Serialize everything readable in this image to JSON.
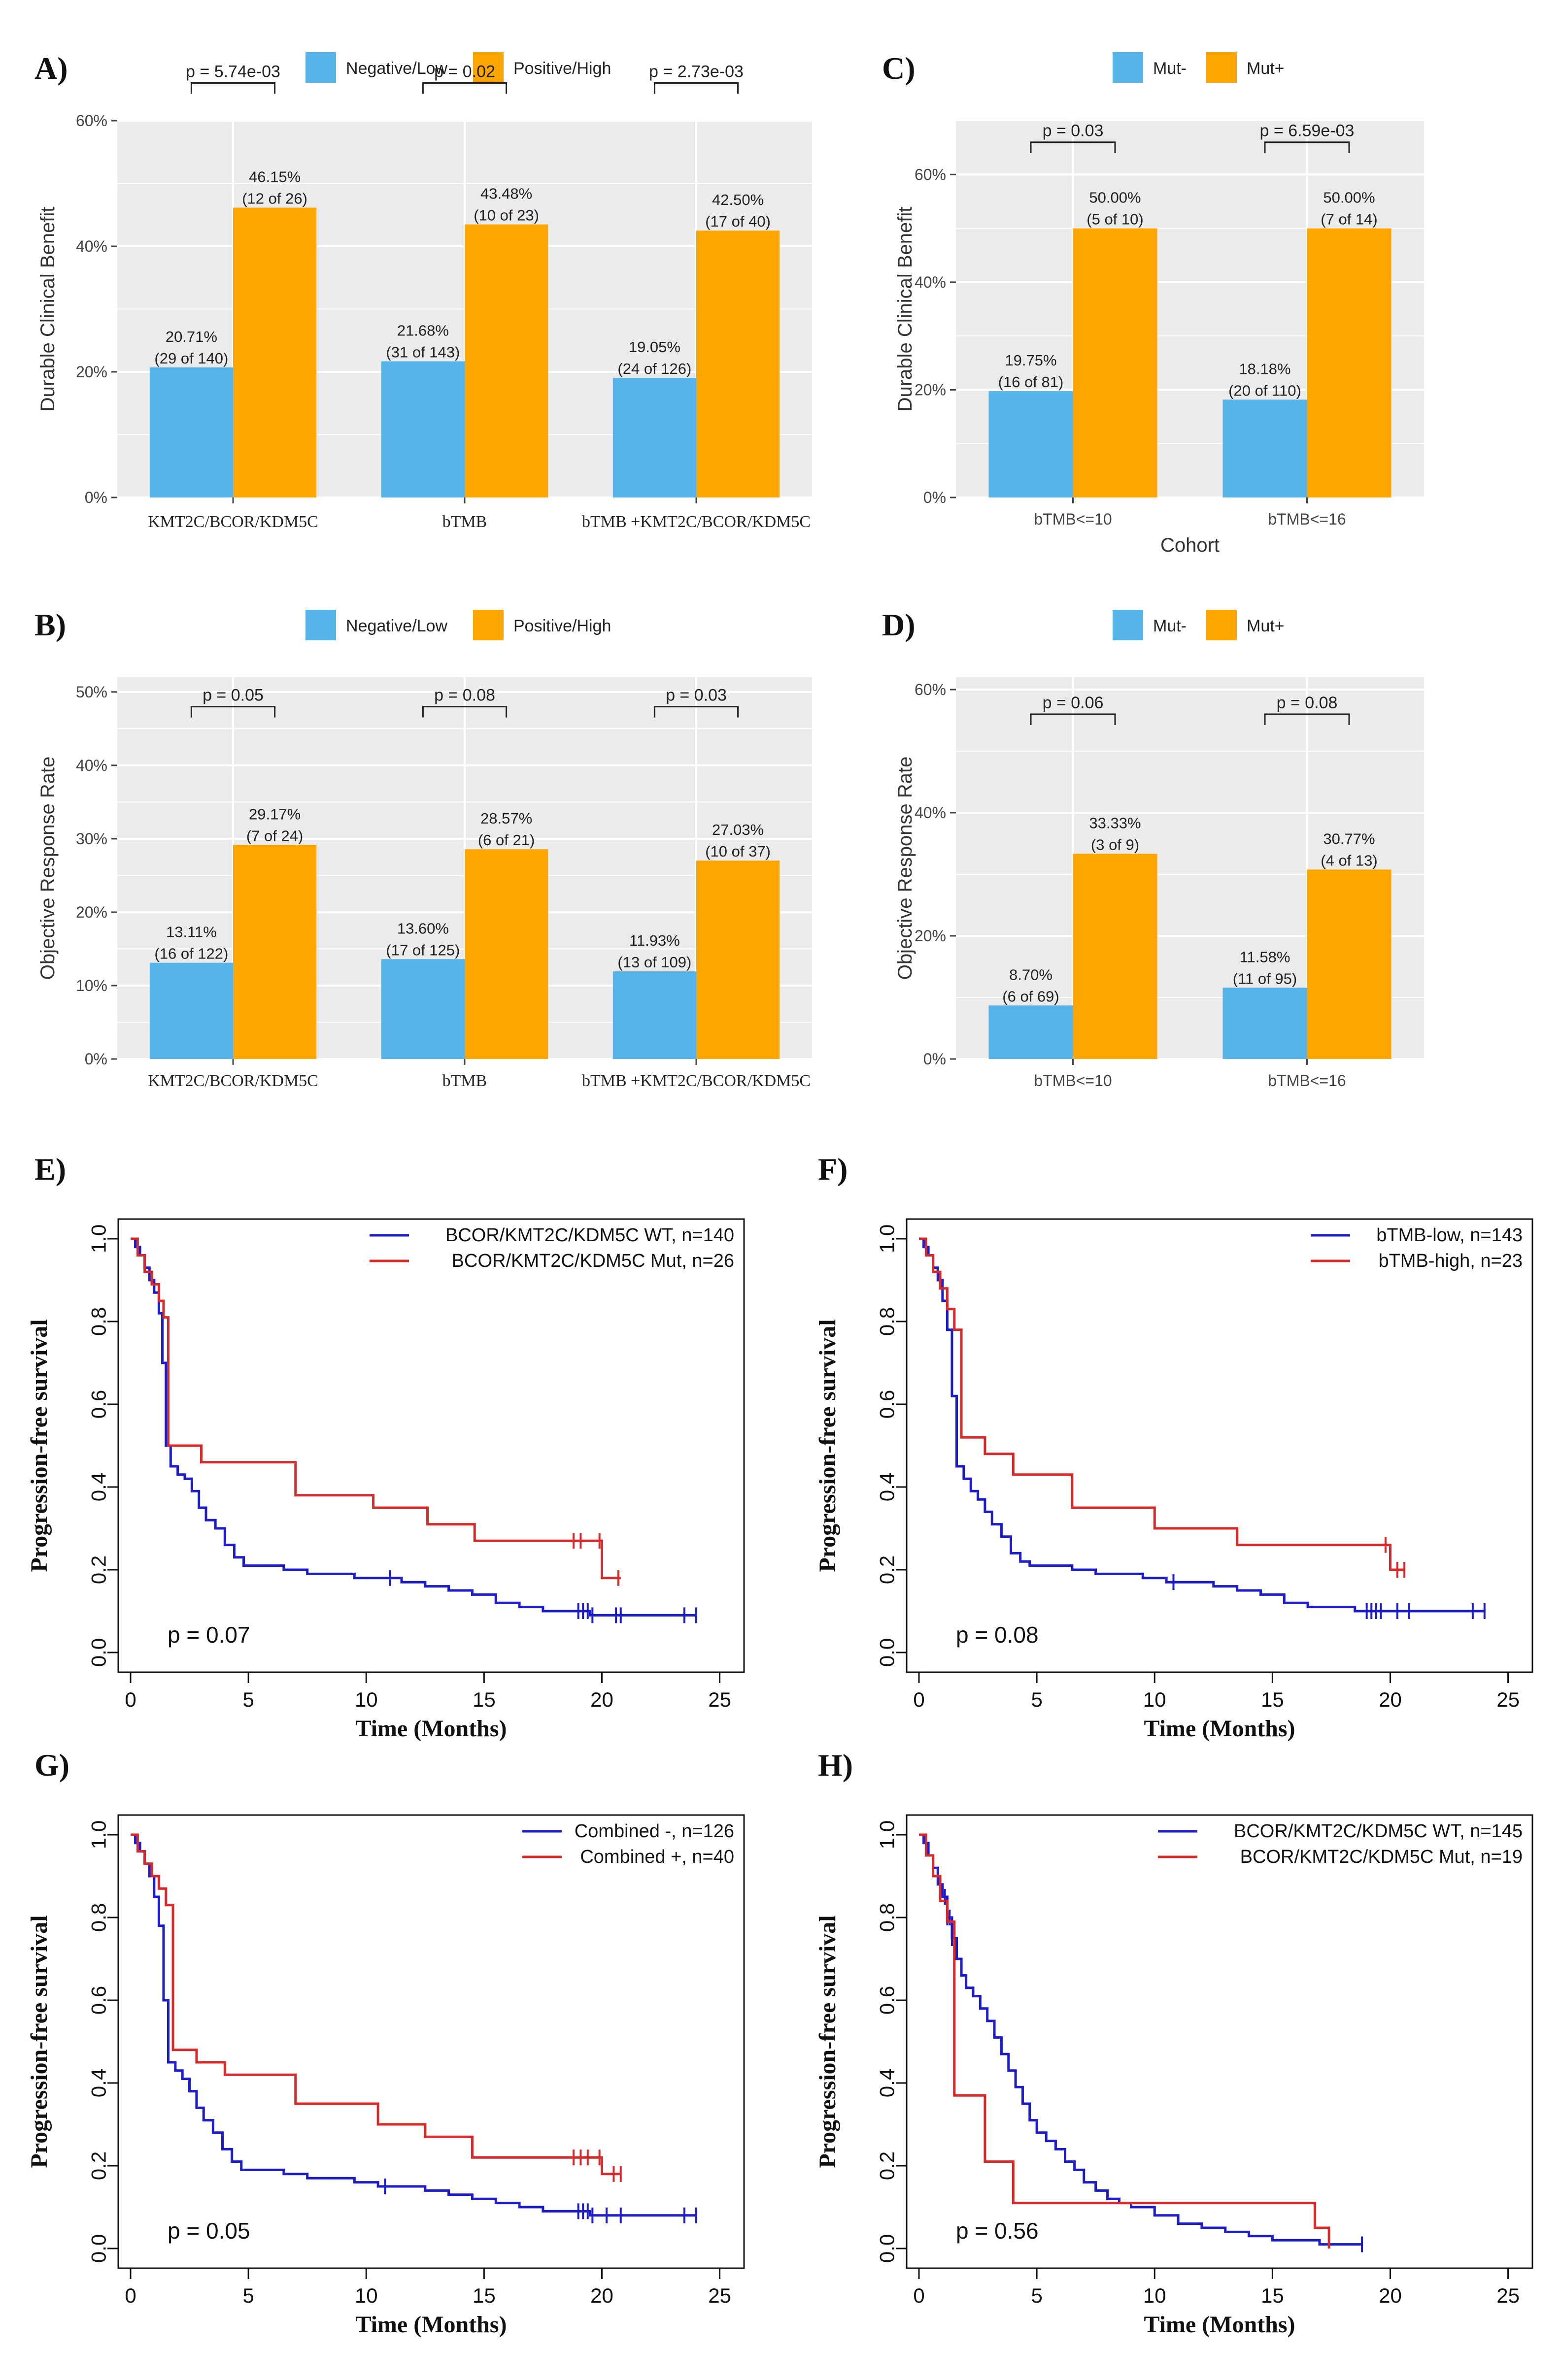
{
  "colors": {
    "neg": "#56B4E9",
    "pos": "#FFA500",
    "panel_bg": "#EBEBEB",
    "grid": "#FFFFFF",
    "blue": "#1C1CC8",
    "red": "#D42A2A"
  },
  "chart_data": [
    {
      "panel": "A)",
      "type": "bar",
      "ylabel": "Durable Clinical Benefit",
      "xlabel": "",
      "ylim": [
        0,
        60
      ],
      "yticks": [
        "0%",
        "20%",
        "40%",
        "60%"
      ],
      "ytick_values": [
        0,
        20,
        40,
        60
      ],
      "legend": [
        "Negative/Low",
        "Positive/High"
      ],
      "categories": [
        "KMT2C/BCOR/KDM5C",
        "bTMB",
        "bTMB +KMT2C/BCOR/KDM5C"
      ],
      "series": [
        {
          "name": "Negative/Low",
          "values": [
            20.71,
            21.68,
            19.05
          ],
          "pct": [
            "20.71%",
            "21.68%",
            "19.05%"
          ],
          "counts": [
            "(29 of 140)",
            "(31 of 143)",
            "(24 of 126)"
          ]
        },
        {
          "name": "Positive/High",
          "values": [
            46.15,
            43.48,
            42.5
          ],
          "pct": [
            "46.15%",
            "43.48%",
            "42.50%"
          ],
          "counts": [
            "(12 of 26)",
            "(10 of 23)",
            "(17 of 40)"
          ]
        }
      ],
      "pvalues": [
        "p = 5.74e-03",
        "p = 0.02",
        "p = 2.73e-03"
      ]
    },
    {
      "panel": "C)",
      "type": "bar",
      "ylabel": "Durable Clinical Benefit",
      "xlabel": "Cohort",
      "ylim": [
        0,
        70
      ],
      "yticks": [
        "0%",
        "20%",
        "40%",
        "60%"
      ],
      "ytick_values": [
        0,
        20,
        40,
        60
      ],
      "legend": [
        "Mut-",
        "Mut+"
      ],
      "categories": [
        "bTMB<=10",
        "bTMB<=16"
      ],
      "series": [
        {
          "name": "Mut-",
          "values": [
            19.75,
            18.18
          ],
          "pct": [
            "19.75%",
            "18.18%"
          ],
          "counts": [
            "(16 of 81)",
            "(20 of 110)"
          ]
        },
        {
          "name": "Mut+",
          "values": [
            50.0,
            50.0
          ],
          "pct": [
            "50.00%",
            "50.00%"
          ],
          "counts": [
            "(5 of 10)",
            "(7 of 14)"
          ]
        }
      ],
      "pvalues": [
        "p = 0.03",
        "p = 6.59e-03"
      ]
    },
    {
      "panel": "B)",
      "type": "bar",
      "ylabel": "Objective Response Rate",
      "xlabel": "",
      "ylim": [
        0,
        52
      ],
      "yticks": [
        "0%",
        "10%",
        "20%",
        "30%",
        "40%",
        "50%"
      ],
      "ytick_values": [
        0,
        10,
        20,
        30,
        40,
        50
      ],
      "legend": [
        "Negative/Low",
        "Positive/High"
      ],
      "categories": [
        "KMT2C/BCOR/KDM5C",
        "bTMB",
        "bTMB +KMT2C/BCOR/KDM5C"
      ],
      "series": [
        {
          "name": "Negative/Low",
          "values": [
            13.11,
            13.6,
            11.93
          ],
          "pct": [
            "13.11%",
            "13.60%",
            "11.93%"
          ],
          "counts": [
            "(16 of 122)",
            "(17 of 125)",
            "(13 of 109)"
          ]
        },
        {
          "name": "Positive/High",
          "values": [
            29.17,
            28.57,
            27.03
          ],
          "pct": [
            "29.17%",
            "28.57%",
            "27.03%"
          ],
          "counts": [
            "(7 of 24)",
            "(6 of 21)",
            "(10 of 37)"
          ]
        }
      ],
      "pvalues": [
        "p = 0.05",
        "p = 0.08",
        "p = 0.03"
      ]
    },
    {
      "panel": "D)",
      "type": "bar",
      "ylabel": "Objective Response Rate",
      "xlabel": "",
      "ylim": [
        0,
        62
      ],
      "yticks": [
        "0%",
        "20%",
        "40%",
        "60%"
      ],
      "ytick_values": [
        0,
        20,
        40,
        60
      ],
      "legend": [
        "Mut-",
        "Mut+"
      ],
      "categories": [
        "bTMB<=10",
        "bTMB<=16"
      ],
      "series": [
        {
          "name": "Mut-",
          "values": [
            8.7,
            11.58
          ],
          "pct": [
            "8.70%",
            "11.58%"
          ],
          "counts": [
            "(6 of 69)",
            "(11 of 95)"
          ]
        },
        {
          "name": "Mut+",
          "values": [
            33.33,
            30.77
          ],
          "pct": [
            "33.33%",
            "30.77%"
          ],
          "counts": [
            "(3 of 9)",
            "(4 of 13)"
          ]
        }
      ],
      "pvalues": [
        "p = 0.06",
        "p = 0.08"
      ]
    },
    {
      "panel": "E)",
      "type": "line",
      "xlabel": "Time (Months)",
      "ylabel": "Progression-free survival",
      "xlim": [
        0,
        25
      ],
      "ylim": [
        0,
        1
      ],
      "xticks": [
        "0",
        "5",
        "10",
        "15",
        "20",
        "25"
      ],
      "yticks": [
        "0.0",
        "0.2",
        "0.4",
        "0.6",
        "0.8",
        "1.0"
      ],
      "pvalue": "p = 0.07",
      "series": [
        {
          "name": "BCOR/KMT2C/KDM5C WT, n=140",
          "x": [
            0,
            0.2,
            0.4,
            0.6,
            0.8,
            1.0,
            1.2,
            1.35,
            1.5,
            1.7,
            2.0,
            2.3,
            2.6,
            2.9,
            3.2,
            3.6,
            4.0,
            4.4,
            4.8,
            5.5,
            6.5,
            7.5,
            8.5,
            9.5,
            10.5,
            11.5,
            12.5,
            13.5,
            14.5,
            15.5,
            16.5,
            17.5,
            18.5,
            19.5,
            20.5,
            22,
            24
          ],
          "y": [
            1.0,
            0.98,
            0.96,
            0.93,
            0.9,
            0.87,
            0.82,
            0.7,
            0.5,
            0.45,
            0.43,
            0.42,
            0.39,
            0.35,
            0.32,
            0.3,
            0.26,
            0.23,
            0.21,
            0.21,
            0.2,
            0.19,
            0.19,
            0.18,
            0.18,
            0.17,
            0.16,
            0.15,
            0.14,
            0.12,
            0.11,
            0.1,
            0.1,
            0.09,
            0.09,
            0.09,
            0.09
          ],
          "censor_x": [
            11,
            19,
            19.2,
            19.4,
            19.6,
            20.6,
            20.8,
            23.5,
            24
          ]
        },
        {
          "name": "BCOR/KMT2C/KDM5C Mut, n=26",
          "x": [
            0,
            0.3,
            0.6,
            0.9,
            1.2,
            1.4,
            1.6,
            3.0,
            7.0,
            10.3,
            12.6,
            14.6,
            19.0,
            20.0,
            20.8
          ],
          "y": [
            1.0,
            0.96,
            0.92,
            0.89,
            0.85,
            0.81,
            0.5,
            0.46,
            0.38,
            0.35,
            0.31,
            0.27,
            0.27,
            0.18,
            0.18
          ],
          "censor_x": [
            18.8,
            19.1,
            19.9,
            20.7
          ]
        }
      ]
    },
    {
      "panel": "F)",
      "type": "line",
      "xlabel": "Time (Months)",
      "ylabel": "Progression-free survival",
      "xlim": [
        0,
        25
      ],
      "ylim": [
        0,
        1
      ],
      "xticks": [
        "0",
        "5",
        "10",
        "15",
        "20",
        "25"
      ],
      "yticks": [
        "0.0",
        "0.2",
        "0.4",
        "0.6",
        "0.8",
        "1.0"
      ],
      "pvalue": "p = 0.08",
      "series": [
        {
          "name": "bTMB-low, n=143",
          "x": [
            0,
            0.2,
            0.4,
            0.6,
            0.8,
            1.0,
            1.2,
            1.4,
            1.6,
            1.9,
            2.2,
            2.5,
            2.8,
            3.1,
            3.5,
            3.9,
            4.3,
            4.7,
            5.5,
            6.5,
            7.5,
            8.5,
            9.5,
            10.5,
            11.5,
            12.5,
            13.5,
            14.5,
            15.5,
            16.5,
            17.5,
            18.5,
            19.5,
            20.5,
            22,
            24
          ],
          "y": [
            1.0,
            0.98,
            0.96,
            0.93,
            0.9,
            0.85,
            0.78,
            0.62,
            0.45,
            0.42,
            0.39,
            0.37,
            0.34,
            0.31,
            0.28,
            0.24,
            0.22,
            0.21,
            0.21,
            0.2,
            0.19,
            0.19,
            0.18,
            0.17,
            0.17,
            0.16,
            0.15,
            0.14,
            0.12,
            0.11,
            0.11,
            0.1,
            0.1,
            0.1,
            0.1,
            0.1
          ],
          "censor_x": [
            10.8,
            19,
            19.2,
            19.4,
            19.6,
            20.3,
            20.8,
            23.5,
            24
          ]
        },
        {
          "name": "bTMB-high, n=23",
          "x": [
            0,
            0.3,
            0.6,
            0.9,
            1.2,
            1.5,
            1.8,
            2.8,
            4.0,
            6.5,
            10.0,
            13.5,
            20.0,
            20.6
          ],
          "y": [
            1.0,
            0.96,
            0.92,
            0.88,
            0.83,
            0.78,
            0.52,
            0.48,
            0.43,
            0.35,
            0.3,
            0.26,
            0.2,
            0.2
          ],
          "censor_x": [
            19.8,
            20.3,
            20.6
          ]
        }
      ]
    },
    {
      "panel": "G)",
      "type": "line",
      "xlabel": "Time (Months)",
      "ylabel": "Progression-free survival",
      "xlim": [
        0,
        25
      ],
      "ylim": [
        0,
        1
      ],
      "xticks": [
        "0",
        "5",
        "10",
        "15",
        "20",
        "25"
      ],
      "yticks": [
        "0.0",
        "0.2",
        "0.4",
        "0.6",
        "0.8",
        "1.0"
      ],
      "pvalue": "p = 0.05",
      "series": [
        {
          "name": "Combined -, n=126",
          "x": [
            0,
            0.2,
            0.4,
            0.6,
            0.8,
            1.0,
            1.2,
            1.4,
            1.6,
            1.9,
            2.2,
            2.5,
            2.8,
            3.1,
            3.5,
            3.9,
            4.3,
            4.7,
            5.5,
            6.5,
            7.5,
            8.5,
            9.5,
            10.5,
            11.5,
            12.5,
            13.5,
            14.5,
            15.5,
            16.5,
            17.5,
            18.5,
            19.5,
            20.5,
            22,
            24
          ],
          "y": [
            1.0,
            0.98,
            0.96,
            0.93,
            0.9,
            0.85,
            0.78,
            0.6,
            0.45,
            0.43,
            0.41,
            0.38,
            0.34,
            0.31,
            0.28,
            0.24,
            0.21,
            0.19,
            0.19,
            0.18,
            0.17,
            0.17,
            0.16,
            0.15,
            0.15,
            0.14,
            0.13,
            0.12,
            0.11,
            0.1,
            0.09,
            0.09,
            0.08,
            0.08,
            0.08,
            0.08
          ],
          "censor_x": [
            10.8,
            19,
            19.2,
            19.4,
            19.6,
            20.2,
            20.8,
            23.5,
            24
          ]
        },
        {
          "name": "Combined +, n=40",
          "x": [
            0,
            0.3,
            0.6,
            0.9,
            1.2,
            1.5,
            1.8,
            2.8,
            4.0,
            7.0,
            10.5,
            12.5,
            14.5,
            19.0,
            20.0,
            20.8
          ],
          "y": [
            1.0,
            0.96,
            0.93,
            0.9,
            0.87,
            0.83,
            0.48,
            0.45,
            0.42,
            0.35,
            0.3,
            0.27,
            0.22,
            0.22,
            0.18,
            0.18
          ],
          "censor_x": [
            18.8,
            19.1,
            19.4,
            19.9,
            20.5,
            20.8
          ]
        }
      ]
    },
    {
      "panel": "H)",
      "type": "line",
      "xlabel": "Time (Months)",
      "ylabel": "Progression-free survival",
      "xlim": [
        0,
        25
      ],
      "ylim": [
        0,
        1
      ],
      "xticks": [
        "0",
        "5",
        "10",
        "15",
        "20",
        "25"
      ],
      "yticks": [
        "0.0",
        "0.2",
        "0.4",
        "0.6",
        "0.8",
        "1.0"
      ],
      "pvalue": "p = 0.56",
      "series": [
        {
          "name": "BCOR/KMT2C/KDM5C WT, n=145",
          "x": [
            0,
            0.2,
            0.4,
            0.6,
            0.8,
            1.0,
            1.2,
            1.4,
            1.6,
            1.8,
            2.0,
            2.3,
            2.6,
            2.9,
            3.2,
            3.5,
            3.8,
            4.1,
            4.4,
            4.7,
            5.0,
            5.4,
            5.8,
            6.2,
            6.6,
            7.0,
            7.5,
            8.0,
            8.5,
            9.0,
            10.0,
            11.0,
            12.0,
            13.0,
            14.0,
            15.0,
            16.0,
            17.0,
            18.0,
            18.8
          ],
          "y": [
            1.0,
            0.98,
            0.95,
            0.92,
            0.88,
            0.85,
            0.8,
            0.75,
            0.7,
            0.66,
            0.63,
            0.61,
            0.58,
            0.55,
            0.51,
            0.47,
            0.43,
            0.39,
            0.35,
            0.31,
            0.28,
            0.26,
            0.24,
            0.21,
            0.19,
            0.16,
            0.14,
            0.12,
            0.11,
            0.1,
            0.08,
            0.06,
            0.05,
            0.04,
            0.03,
            0.02,
            0.02,
            0.01,
            0.01,
            0.01
          ],
          "censor_x": [
            1.1,
            1.2,
            1.3,
            1.4,
            18.8
          ]
        },
        {
          "name": "BCOR/KMT2C/KDM5C Mut, n=19",
          "x": [
            0,
            0.3,
            0.6,
            0.9,
            1.2,
            1.5,
            2.8,
            4.0,
            4.4,
            16.8,
            17.4
          ],
          "y": [
            1.0,
            0.95,
            0.9,
            0.84,
            0.79,
            0.37,
            0.21,
            0.11,
            0.11,
            0.05,
            0.0
          ],
          "censor_x": []
        }
      ]
    }
  ]
}
